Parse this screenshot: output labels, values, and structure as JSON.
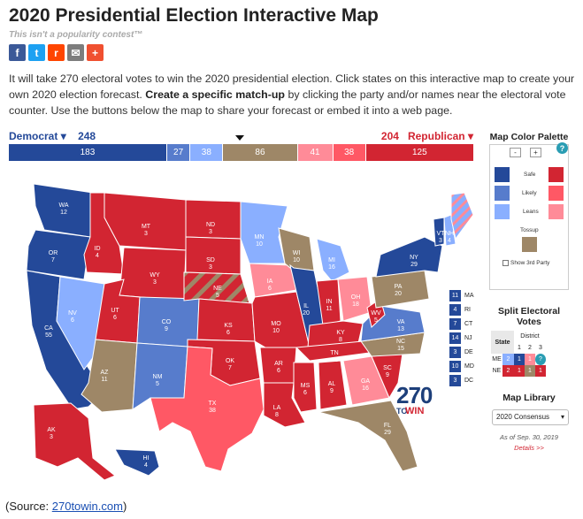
{
  "page_title": "2020 Presidential Election Interactive Map",
  "subtitle": "This isn't a popularity contest™",
  "share_buttons": [
    {
      "name": "facebook-share-button",
      "glyph": "f",
      "color": "#3b5998"
    },
    {
      "name": "twitter-share-button",
      "glyph": "t",
      "color": "#1da1f2"
    },
    {
      "name": "reddit-share-button",
      "glyph": "r",
      "color": "#ff4500"
    },
    {
      "name": "email-share-button",
      "glyph": "✉",
      "color": "#7d7d7d"
    },
    {
      "name": "more-share-button",
      "glyph": "+",
      "color": "#f05030"
    }
  ],
  "intro": {
    "part1": "It will take 270 electoral votes to win the 2020 presidential election. Click states on this interactive map to create your own 2020 election forecast. ",
    "bold": "Create a specific match-up",
    "part2": " by clicking the party and/or names near the electoral vote counter. Use the buttons below the map to share your forecast or embed it into a web page."
  },
  "counter": {
    "dem_label": "Democrat ▾",
    "dem_total": "248",
    "rep_total": "204",
    "rep_label": "Republican ▾",
    "segments": [
      {
        "value": 183,
        "color": "#244999"
      },
      {
        "value": 27,
        "color": "#577ccc"
      },
      {
        "value": 38,
        "color": "#8aafff"
      },
      {
        "value": 86,
        "color": "#9e8767"
      },
      {
        "value": 41,
        "color": "#ff8b98"
      },
      {
        "value": 38,
        "color": "#ff5865"
      },
      {
        "value": 125,
        "color": "#d22532"
      }
    ]
  },
  "colors": {
    "safe_d": "#244999",
    "likely_d": "#577ccc",
    "lean_d": "#8aafff",
    "tossup": "#9e8767",
    "lean_r": "#ff8b98",
    "likely_r": "#ff5865",
    "safe_r": "#d22532"
  },
  "states": [
    {
      "abbr": "WA",
      "ev": "12"
    },
    {
      "abbr": "OR",
      "ev": "7"
    },
    {
      "abbr": "CA",
      "ev": "55"
    },
    {
      "abbr": "NV",
      "ev": "6"
    },
    {
      "abbr": "ID",
      "ev": "4"
    },
    {
      "abbr": "MT",
      "ev": "3"
    },
    {
      "abbr": "WY",
      "ev": "3"
    },
    {
      "abbr": "UT",
      "ev": "6"
    },
    {
      "abbr": "AZ",
      "ev": "11"
    },
    {
      "abbr": "CO",
      "ev": "9"
    },
    {
      "abbr": "NM",
      "ev": "5"
    },
    {
      "abbr": "ND",
      "ev": "3"
    },
    {
      "abbr": "SD",
      "ev": "3"
    },
    {
      "abbr": "NE",
      "ev": "5"
    },
    {
      "abbr": "KS",
      "ev": "6"
    },
    {
      "abbr": "OK",
      "ev": "7"
    },
    {
      "abbr": "TX",
      "ev": "38"
    },
    {
      "abbr": "MN",
      "ev": "10"
    },
    {
      "abbr": "IA",
      "ev": "6"
    },
    {
      "abbr": "MO",
      "ev": "10"
    },
    {
      "abbr": "AR",
      "ev": "6"
    },
    {
      "abbr": "LA",
      "ev": "8"
    },
    {
      "abbr": "WI",
      "ev": "10"
    },
    {
      "abbr": "IL",
      "ev": "20"
    },
    {
      "abbr": "MI",
      "ev": "16"
    },
    {
      "abbr": "IN",
      "ev": "11"
    },
    {
      "abbr": "OH",
      "ev": "18"
    },
    {
      "abbr": "KY",
      "ev": "8"
    },
    {
      "abbr": "TN",
      "ev": "11"
    },
    {
      "abbr": "MS",
      "ev": "6"
    },
    {
      "abbr": "AL",
      "ev": "9"
    },
    {
      "abbr": "GA",
      "ev": "16"
    },
    {
      "abbr": "FL",
      "ev": "29"
    },
    {
      "abbr": "SC",
      "ev": "9"
    },
    {
      "abbr": "NC",
      "ev": "15"
    },
    {
      "abbr": "VA",
      "ev": "13"
    },
    {
      "abbr": "WV",
      "ev": "5"
    },
    {
      "abbr": "PA",
      "ev": "20"
    },
    {
      "abbr": "NY",
      "ev": "29"
    },
    {
      "abbr": "VT",
      "ev": "3"
    },
    {
      "abbr": "NH",
      "ev": "4"
    },
    {
      "abbr": "ME",
      "ev": "4"
    },
    {
      "abbr": "AK",
      "ev": "3"
    },
    {
      "abbr": "HI",
      "ev": "4"
    }
  ],
  "small_states": [
    {
      "ev": "11",
      "name": "MA",
      "color": "#244999"
    },
    {
      "ev": "4",
      "name": "RI",
      "color": "#244999"
    },
    {
      "ev": "7",
      "name": "CT",
      "color": "#244999"
    },
    {
      "ev": "14",
      "name": "NJ",
      "color": "#244999"
    },
    {
      "ev": "3",
      "name": "DE",
      "color": "#244999"
    },
    {
      "ev": "10",
      "name": "MD",
      "color": "#244999"
    },
    {
      "ev": "3",
      "name": "DC",
      "color": "#244999"
    }
  ],
  "logo": {
    "number": "270",
    "to": "TO",
    "win": "WIN"
  },
  "palette": {
    "title": "Map Color Palette",
    "minus": "-",
    "plus": "+",
    "help": "?",
    "labels": {
      "safe": "Safe",
      "likely": "Likely",
      "leans": "Leans",
      "tossup": "Tossup"
    },
    "show_third_party": "Show 3rd Party"
  },
  "split": {
    "title": "Split Electoral Votes",
    "state_header": "State",
    "district_header": "District",
    "district_numbers": [
      "1",
      "2",
      "3"
    ],
    "rows": [
      {
        "state": "ME",
        "total": "2",
        "districts": [
          "1",
          "1",
          "?"
        ],
        "colors": [
          "#8aafff",
          "#244999",
          "#ff8b98"
        ]
      },
      {
        "state": "NE",
        "total": "2",
        "districts": [
          "1",
          "1",
          "1"
        ],
        "colors": [
          "#d22532",
          "#d22532",
          "#9e8767",
          "#d22532"
        ]
      }
    ]
  },
  "library": {
    "title": "Map Library",
    "selected": "2020 Consensus",
    "as_of": "As of Sep. 30, 2019",
    "details": "Details >>"
  },
  "source": {
    "prefix": "(Source: ",
    "link": "270towin.com",
    "suffix": ")"
  }
}
